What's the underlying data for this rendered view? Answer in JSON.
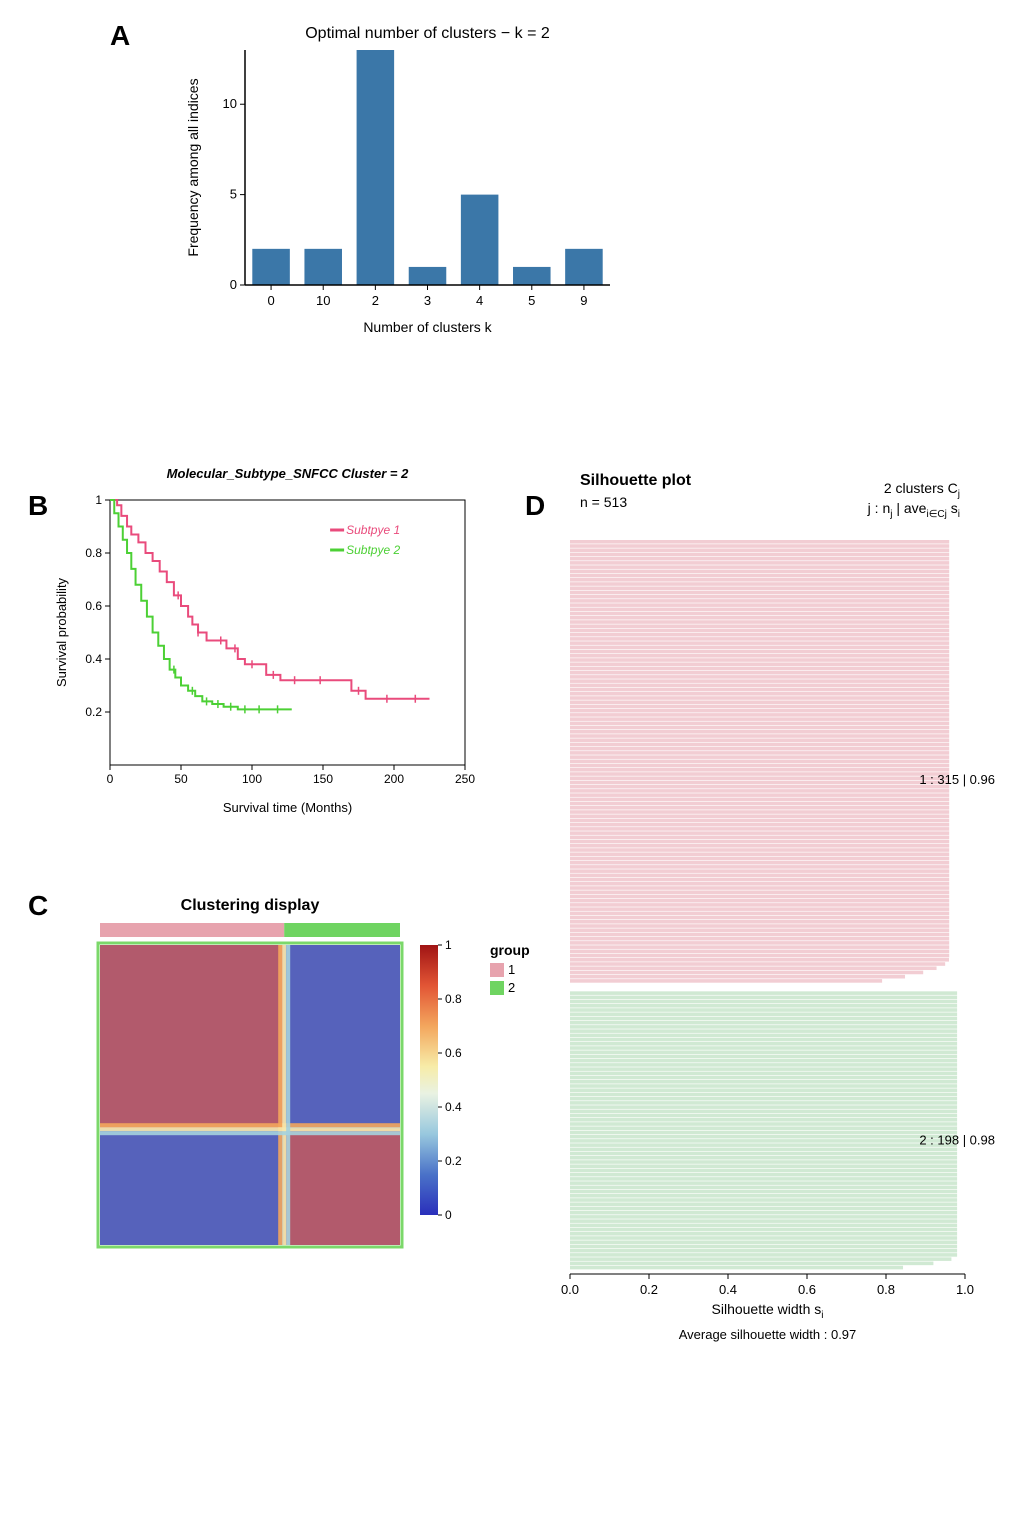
{
  "panelA": {
    "label": "A",
    "type": "bar",
    "title": "Optimal number of clusters − k = 2",
    "xlabel": "Number of clusters k",
    "ylabel": "Frequency among all indices",
    "categories": [
      "0",
      "10",
      "2",
      "3",
      "4",
      "5",
      "9"
    ],
    "values": [
      2,
      2,
      13,
      1,
      5,
      1,
      2
    ],
    "bar_color": "#3b77a8",
    "ylim": [
      0,
      13
    ],
    "yticks": [
      0,
      5,
      10
    ],
    "axis_color": "#000000",
    "label_fontsize": 14,
    "title_fontsize": 16,
    "tick_fontsize": 13,
    "bar_width": 0.72,
    "background": "#ffffff"
  },
  "panelB": {
    "label": "B",
    "type": "survival",
    "title": "Molecular_Subtype_SNFCC Cluster = 2",
    "title_fontstyle": "italic",
    "title_fontweight": "bold",
    "xlabel": "Survival time (Months)",
    "ylabel": "Survival probability",
    "xlim": [
      0,
      250
    ],
    "ylim": [
      0,
      1.0
    ],
    "xticks": [
      0,
      50,
      100,
      150,
      200,
      250
    ],
    "yticks": [
      0.2,
      0.4,
      0.6,
      0.8,
      1.0
    ],
    "axis_color": "#000000",
    "box": true,
    "series": [
      {
        "name": "Subtpye 1",
        "color": "#e94b7c",
        "line_width": 2,
        "points": [
          [
            0,
            1.0
          ],
          [
            5,
            0.98
          ],
          [
            8,
            0.94
          ],
          [
            12,
            0.9
          ],
          [
            15,
            0.87
          ],
          [
            20,
            0.84
          ],
          [
            25,
            0.8
          ],
          [
            30,
            0.77
          ],
          [
            35,
            0.73
          ],
          [
            40,
            0.69
          ],
          [
            45,
            0.64
          ],
          [
            50,
            0.6
          ],
          [
            55,
            0.56
          ],
          [
            58,
            0.53
          ],
          [
            62,
            0.5
          ],
          [
            68,
            0.47
          ],
          [
            75,
            0.47
          ],
          [
            82,
            0.44
          ],
          [
            90,
            0.4
          ],
          [
            95,
            0.38
          ],
          [
            102,
            0.38
          ],
          [
            110,
            0.34
          ],
          [
            120,
            0.32
          ],
          [
            135,
            0.32
          ],
          [
            150,
            0.32
          ],
          [
            165,
            0.32
          ],
          [
            170,
            0.28
          ],
          [
            180,
            0.25
          ],
          [
            200,
            0.25
          ],
          [
            225,
            0.25
          ]
        ],
        "censor_x": [
          48,
          62,
          78,
          88,
          100,
          115,
          130,
          148,
          175,
          195,
          215
        ]
      },
      {
        "name": "Subtpye 2",
        "color": "#4cd035",
        "line_width": 2,
        "points": [
          [
            0,
            1.0
          ],
          [
            3,
            0.95
          ],
          [
            6,
            0.9
          ],
          [
            9,
            0.85
          ],
          [
            12,
            0.8
          ],
          [
            15,
            0.74
          ],
          [
            18,
            0.68
          ],
          [
            22,
            0.62
          ],
          [
            26,
            0.56
          ],
          [
            30,
            0.5
          ],
          [
            34,
            0.45
          ],
          [
            38,
            0.4
          ],
          [
            42,
            0.36
          ],
          [
            46,
            0.33
          ],
          [
            50,
            0.3
          ],
          [
            55,
            0.28
          ],
          [
            60,
            0.26
          ],
          [
            65,
            0.24
          ],
          [
            72,
            0.23
          ],
          [
            80,
            0.22
          ],
          [
            90,
            0.21
          ],
          [
            100,
            0.21
          ],
          [
            115,
            0.21
          ],
          [
            128,
            0.21
          ]
        ],
        "censor_x": [
          45,
          58,
          68,
          76,
          85,
          95,
          105,
          118
        ]
      }
    ],
    "legend": {
      "items": [
        {
          "label": "Subtpye 1",
          "color": "#e94b7c"
        },
        {
          "label": "Subtpye 2",
          "color": "#4cd035"
        }
      ],
      "fontsize": 12,
      "fontstyle": "italic",
      "pos": "right"
    },
    "label_fontsize": 13,
    "tick_fontsize": 12
  },
  "panelC": {
    "label": "C",
    "type": "heatmap",
    "title": "Clustering display",
    "title_fontweight": "bold",
    "group_bar": {
      "proportions": [
        0.614,
        0.386
      ],
      "colors": [
        "#e7a3ae",
        "#6fd461"
      ],
      "labels": [
        "1",
        "2"
      ],
      "legend_title": "group"
    },
    "blocks": {
      "split": 0.614,
      "diag_color": "#b25a6c",
      "offdiag_color": "#5662bb",
      "boundary_gradient": [
        "#f3a65d",
        "#f6e8ac",
        "#a5d3de"
      ],
      "outline_color": "#7bd86a"
    },
    "colorbar": {
      "ticks": [
        "0",
        "0.2",
        "0.4",
        "0.6",
        "0.8",
        "1"
      ],
      "colors": [
        {
          "stop": 0.0,
          "hex": "#2a2fbb"
        },
        {
          "stop": 0.15,
          "hex": "#4a72c8"
        },
        {
          "stop": 0.3,
          "hex": "#98c8de"
        },
        {
          "stop": 0.45,
          "hex": "#e9f2e2"
        },
        {
          "stop": 0.55,
          "hex": "#f7eca8"
        },
        {
          "stop": 0.7,
          "hex": "#f3a65d"
        },
        {
          "stop": 0.85,
          "hex": "#e25535"
        },
        {
          "stop": 1.0,
          "hex": "#a01414"
        }
      ],
      "tick_fontsize": 12
    },
    "title_fontsize": 16
  },
  "panelD": {
    "label": "D",
    "type": "silhouette",
    "title": "Silhouette plot",
    "subtitle_left": "n = 513",
    "subtitle_right_line1": "2  clusters  C",
    "subtitle_right_sub1": "j",
    "subtitle_right_line2": "j :  n",
    "subtitle_right_line2b": " | ave",
    "subtitle_right_line2c": "  s",
    "subtitle_right_sub2a": "j",
    "subtitle_right_sub2b": "i∈Cj",
    "subtitle_right_sub2c": "i",
    "clusters": [
      {
        "id": "1",
        "n": 315,
        "ave": 0.96,
        "color": "#f2cdd3",
        "label": "1 :   315  |  0.96"
      },
      {
        "id": "2",
        "n": 198,
        "ave": 0.98,
        "color": "#d0e9d3",
        "label": "2 :   198  |  0.98"
      }
    ],
    "xlabel": "Silhouette width s",
    "xlabel_sub": "i",
    "xlim": [
      0,
      1.0
    ],
    "xticks": [
      0.0,
      0.2,
      0.4,
      0.6,
      0.8,
      1.0
    ],
    "xtick_labels": [
      "0.0",
      "0.2",
      "0.4",
      "0.6",
      "0.8",
      "1.0"
    ],
    "avg_label": "Average silhouette width :  0.97",
    "title_fontsize": 16,
    "label_fontsize": 14,
    "tick_fontsize": 13,
    "cluster_label_fontsize": 13,
    "taper": 0.06
  }
}
